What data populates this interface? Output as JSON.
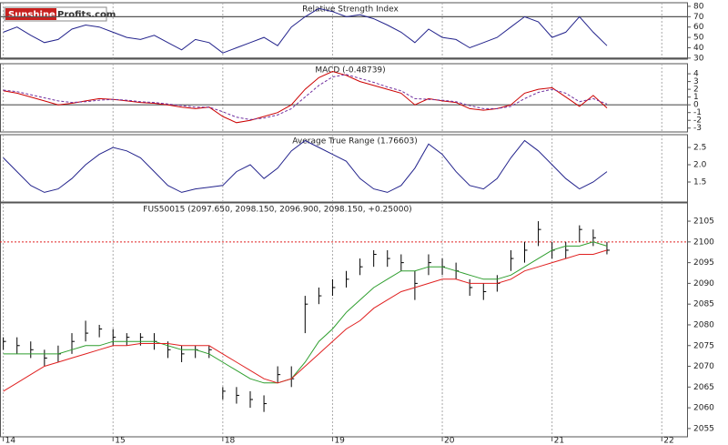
{
  "logo": {
    "brand": "Sunshine",
    "rest": "Profits.com"
  },
  "chart_data": [
    {
      "type": "line",
      "title": "Relative Strength Index",
      "color": "#23238c",
      "values": [
        55,
        60,
        52,
        45,
        48,
        58,
        62,
        60,
        55,
        50,
        48,
        52,
        45,
        38,
        48,
        45,
        35,
        40,
        45,
        50,
        42,
        60,
        70,
        78,
        75,
        70,
        72,
        68,
        62,
        55,
        45,
        58,
        50,
        48,
        40,
        45,
        50,
        60,
        70,
        65,
        50,
        55,
        70,
        55,
        42
      ],
      "ylim": [
        29,
        83.5
      ],
      "yticks": [
        30,
        40,
        50,
        60,
        70,
        80
      ],
      "hlines": [
        30,
        70
      ]
    },
    {
      "type": "line",
      "title": "MACD (-0.48739)",
      "series": [
        {
          "color": "#cc0000",
          "values": [
            1.8,
            1.5,
            1,
            0.5,
            0,
            0.2,
            0.5,
            0.8,
            0.7,
            0.5,
            0.3,
            0.2,
            0,
            -0.3,
            -0.5,
            -0.3,
            -1.5,
            -2.3,
            -2,
            -1.5,
            -1,
            0,
            2,
            3.5,
            4.3,
            3.8,
            3,
            2.5,
            2,
            1.5,
            0,
            0.8,
            0.5,
            0.3,
            -0.5,
            -0.7,
            -0.5,
            0,
            1.5,
            2,
            2.2,
            1,
            -0.2,
            1.2,
            -0.4
          ]
        },
        {
          "color": "#7030a0",
          "dash": true,
          "values": [
            1.9,
            1.7,
            1.3,
            0.9,
            0.5,
            0.3,
            0.4,
            0.6,
            0.7,
            0.6,
            0.4,
            0.3,
            0.1,
            -0.1,
            -0.3,
            -0.3,
            -0.9,
            -1.6,
            -1.9,
            -1.7,
            -1.3,
            -0.5,
            1,
            2.5,
            3.6,
            3.9,
            3.4,
            2.9,
            2.3,
            1.8,
            0.8,
            0.7,
            0.6,
            0.4,
            -0.1,
            -0.5,
            -0.5,
            -0.2,
            0.8,
            1.6,
            2,
            1.5,
            0.4,
            0.8,
            0.1
          ]
        }
      ],
      "ylim": [
        -3.5,
        5.3
      ],
      "yticks": [
        -3,
        -2,
        -1,
        0,
        1,
        2,
        3,
        4
      ],
      "hlines": [
        0
      ]
    },
    {
      "type": "line",
      "title": "Average True Range (1.76603)",
      "color": "#23238c",
      "values": [
        2.2,
        1.8,
        1.4,
        1.2,
        1.3,
        1.6,
        2,
        2.3,
        2.5,
        2.4,
        2.2,
        1.8,
        1.4,
        1.2,
        1.3,
        1.35,
        1.4,
        1.8,
        2,
        1.6,
        1.9,
        2.4,
        2.7,
        2.5,
        2.3,
        2.1,
        1.6,
        1.3,
        1.2,
        1.4,
        1.9,
        2.6,
        2.3,
        1.8,
        1.4,
        1.3,
        1.6,
        2.2,
        2.7,
        2.4,
        2,
        1.6,
        1.3,
        1.5,
        1.8
      ],
      "ylim": [
        0.92,
        2.87
      ],
      "yticks": [
        1.5,
        {
          "value": 2,
          "label": "2.0"
        },
        2.5
      ]
    },
    {
      "type": "ohlc",
      "title": "FUS50015 (2097.650, 2098.150, 2096.900, 2098.150, +0.25000)",
      "x": [
        14,
        14.125,
        14.25,
        14.375,
        14.5,
        14.625,
        14.75,
        14.875,
        15,
        15.125,
        15.25,
        15.375,
        15.5,
        15.625,
        15.75,
        15.875,
        16,
        16.125,
        16.25,
        16.375,
        16.5,
        16.625,
        16.75,
        16.875,
        17,
        17.125,
        17.25,
        17.375,
        17.5,
        17.625,
        17.75,
        17.875,
        18,
        18.125,
        18.25,
        18.375,
        18.5,
        18.625,
        18.75,
        18.875,
        19,
        19.125,
        19.25,
        19.375,
        19.5
      ],
      "close": [
        2076,
        2075,
        2074,
        2072,
        2073,
        2076,
        2078,
        2079,
        2077,
        2077,
        2077,
        2076,
        2074,
        2073,
        2074,
        2074,
        2064,
        2063,
        2062,
        2061,
        2068,
        2067,
        2085,
        2087,
        2089,
        2091,
        2094,
        2097,
        2096,
        2095,
        2090,
        2095,
        2094,
        2093,
        2089,
        2088,
        2090,
        2096,
        2098,
        2103,
        2098,
        2098,
        2103,
        2101,
        2098
      ],
      "high": [
        2077,
        2077,
        2076,
        2074,
        2075,
        2078,
        2081,
        2080,
        2079,
        2078,
        2078,
        2078,
        2076,
        2075,
        2075,
        2075,
        2065,
        2065,
        2064,
        2063,
        2070,
        2070,
        2087,
        2089,
        2091,
        2093,
        2096,
        2098,
        2098,
        2097,
        2093,
        2097,
        2096,
        2095,
        2091,
        2090,
        2092,
        2098,
        2100,
        2105,
        2100,
        2100,
        2104,
        2103,
        2100
      ],
      "low": [
        2074,
        2073,
        2072,
        2070,
        2071,
        2073,
        2076,
        2077,
        2075,
        2075,
        2075,
        2074,
        2072,
        2071,
        2072,
        2072,
        2062,
        2061,
        2060,
        2059,
        2066,
        2065,
        2078,
        2085,
        2087,
        2089,
        2092,
        2094,
        2094,
        2093,
        2086,
        2092,
        2092,
        2091,
        2087,
        2086,
        2088,
        2093,
        2095,
        2099,
        2096,
        2096,
        2100,
        2099,
        2097
      ],
      "bar_color": "#000000",
      "series": [
        {
          "color": "#2e9e2e",
          "values": [
            2073,
            2073,
            2073,
            2073,
            2073,
            2074,
            2075,
            2075,
            2076,
            2076,
            2076,
            2076,
            2075,
            2074,
            2074,
            2073,
            2071,
            2069,
            2067,
            2066,
            2066,
            2067,
            2071,
            2076,
            2079,
            2083,
            2086,
            2089,
            2091,
            2093,
            2093,
            2094,
            2094,
            2093,
            2092,
            2091,
            2091,
            2092,
            2094,
            2096,
            2098,
            2099,
            2099,
            2100,
            2099
          ]
        },
        {
          "color": "#e02020",
          "values": [
            2064,
            2066,
            2068,
            2070,
            2071,
            2072,
            2073,
            2074,
            2075,
            2075,
            2075.5,
            2075.5,
            2075.5,
            2075,
            2075,
            2075,
            2073,
            2071,
            2069,
            2067,
            2066,
            2067,
            2070,
            2073,
            2076,
            2079,
            2081,
            2084,
            2086,
            2088,
            2089,
            2090,
            2091,
            2091,
            2090,
            2090,
            2090,
            2091,
            2093,
            2094,
            2095,
            2096,
            2097,
            2097,
            2098
          ]
        }
      ],
      "hlines": [
        2100
      ],
      "hline_color": "#e02020",
      "xlim": [
        13.97,
        20.23
      ],
      "xticks": [
        14,
        15,
        {
          "value": 16,
          "label": "18"
        },
        {
          "value": 17,
          "label": "19"
        },
        {
          "value": 18,
          "label": "20"
        },
        {
          "value": 19,
          "label": "21"
        },
        {
          "value": 20,
          "label": "22"
        }
      ],
      "ylim": [
        2053,
        2109.4
      ],
      "yticks": [
        2055,
        2060,
        2065,
        2070,
        2075,
        2080,
        2085,
        2090,
        2095,
        2100,
        2105
      ]
    }
  ]
}
